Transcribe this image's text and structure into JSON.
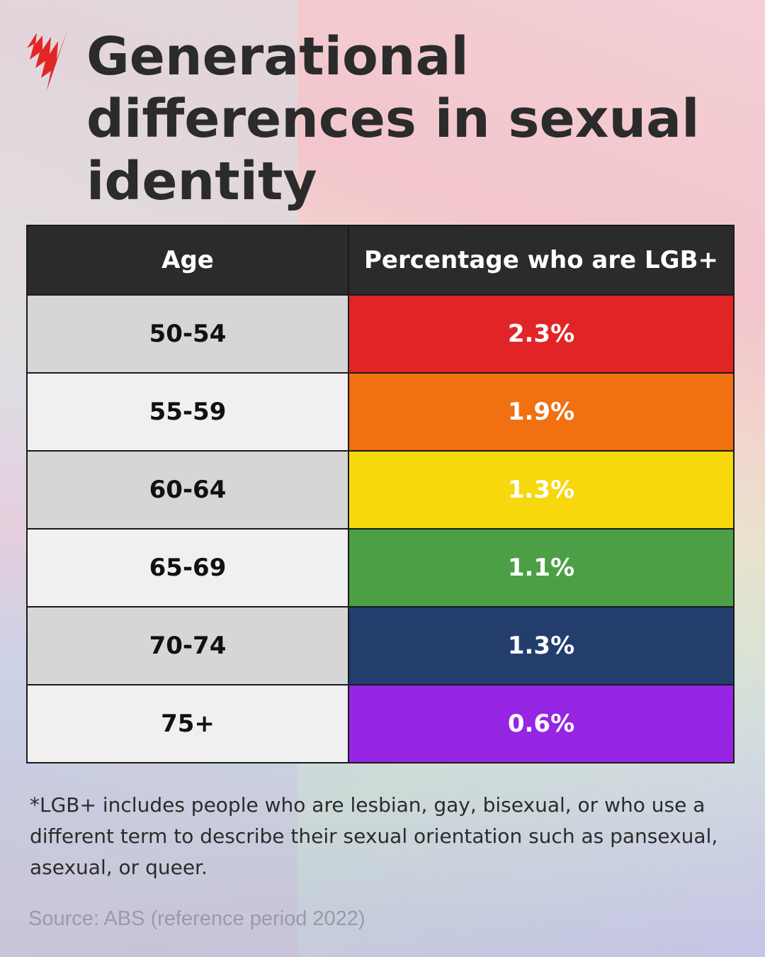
{
  "logo": {
    "name": "SBS",
    "color": "#e32526"
  },
  "title": "Generational differences in sexual identity",
  "chart_data": {
    "type": "table",
    "columns": [
      "Age",
      "Percentage who are LGB+"
    ],
    "rows": [
      {
        "age": "50-54",
        "value": "2.3%",
        "color": "#e12527"
      },
      {
        "age": "55-59",
        "value": "1.9%",
        "color": "#f07012"
      },
      {
        "age": "60-64",
        "value": "1.3%",
        "color": "#f6d80c"
      },
      {
        "age": "65-69",
        "value": "1.1%",
        "color": "#4c9f45"
      },
      {
        "age": "70-74",
        "value": "1.3%",
        "color": "#233d6d"
      },
      {
        "age": "75+",
        "value": "0.6%",
        "color": "#9525e3"
      }
    ],
    "row_shading": [
      "#d6d6d6",
      "#f0f0f0"
    ]
  },
  "footnote": "*LGB+ includes people who are lesbian, gay, bisexual, or who use a different term to describe their sexual orientation such as pansexual, asexual, or queer.",
  "source": "Source: ABS (reference period 2022)"
}
